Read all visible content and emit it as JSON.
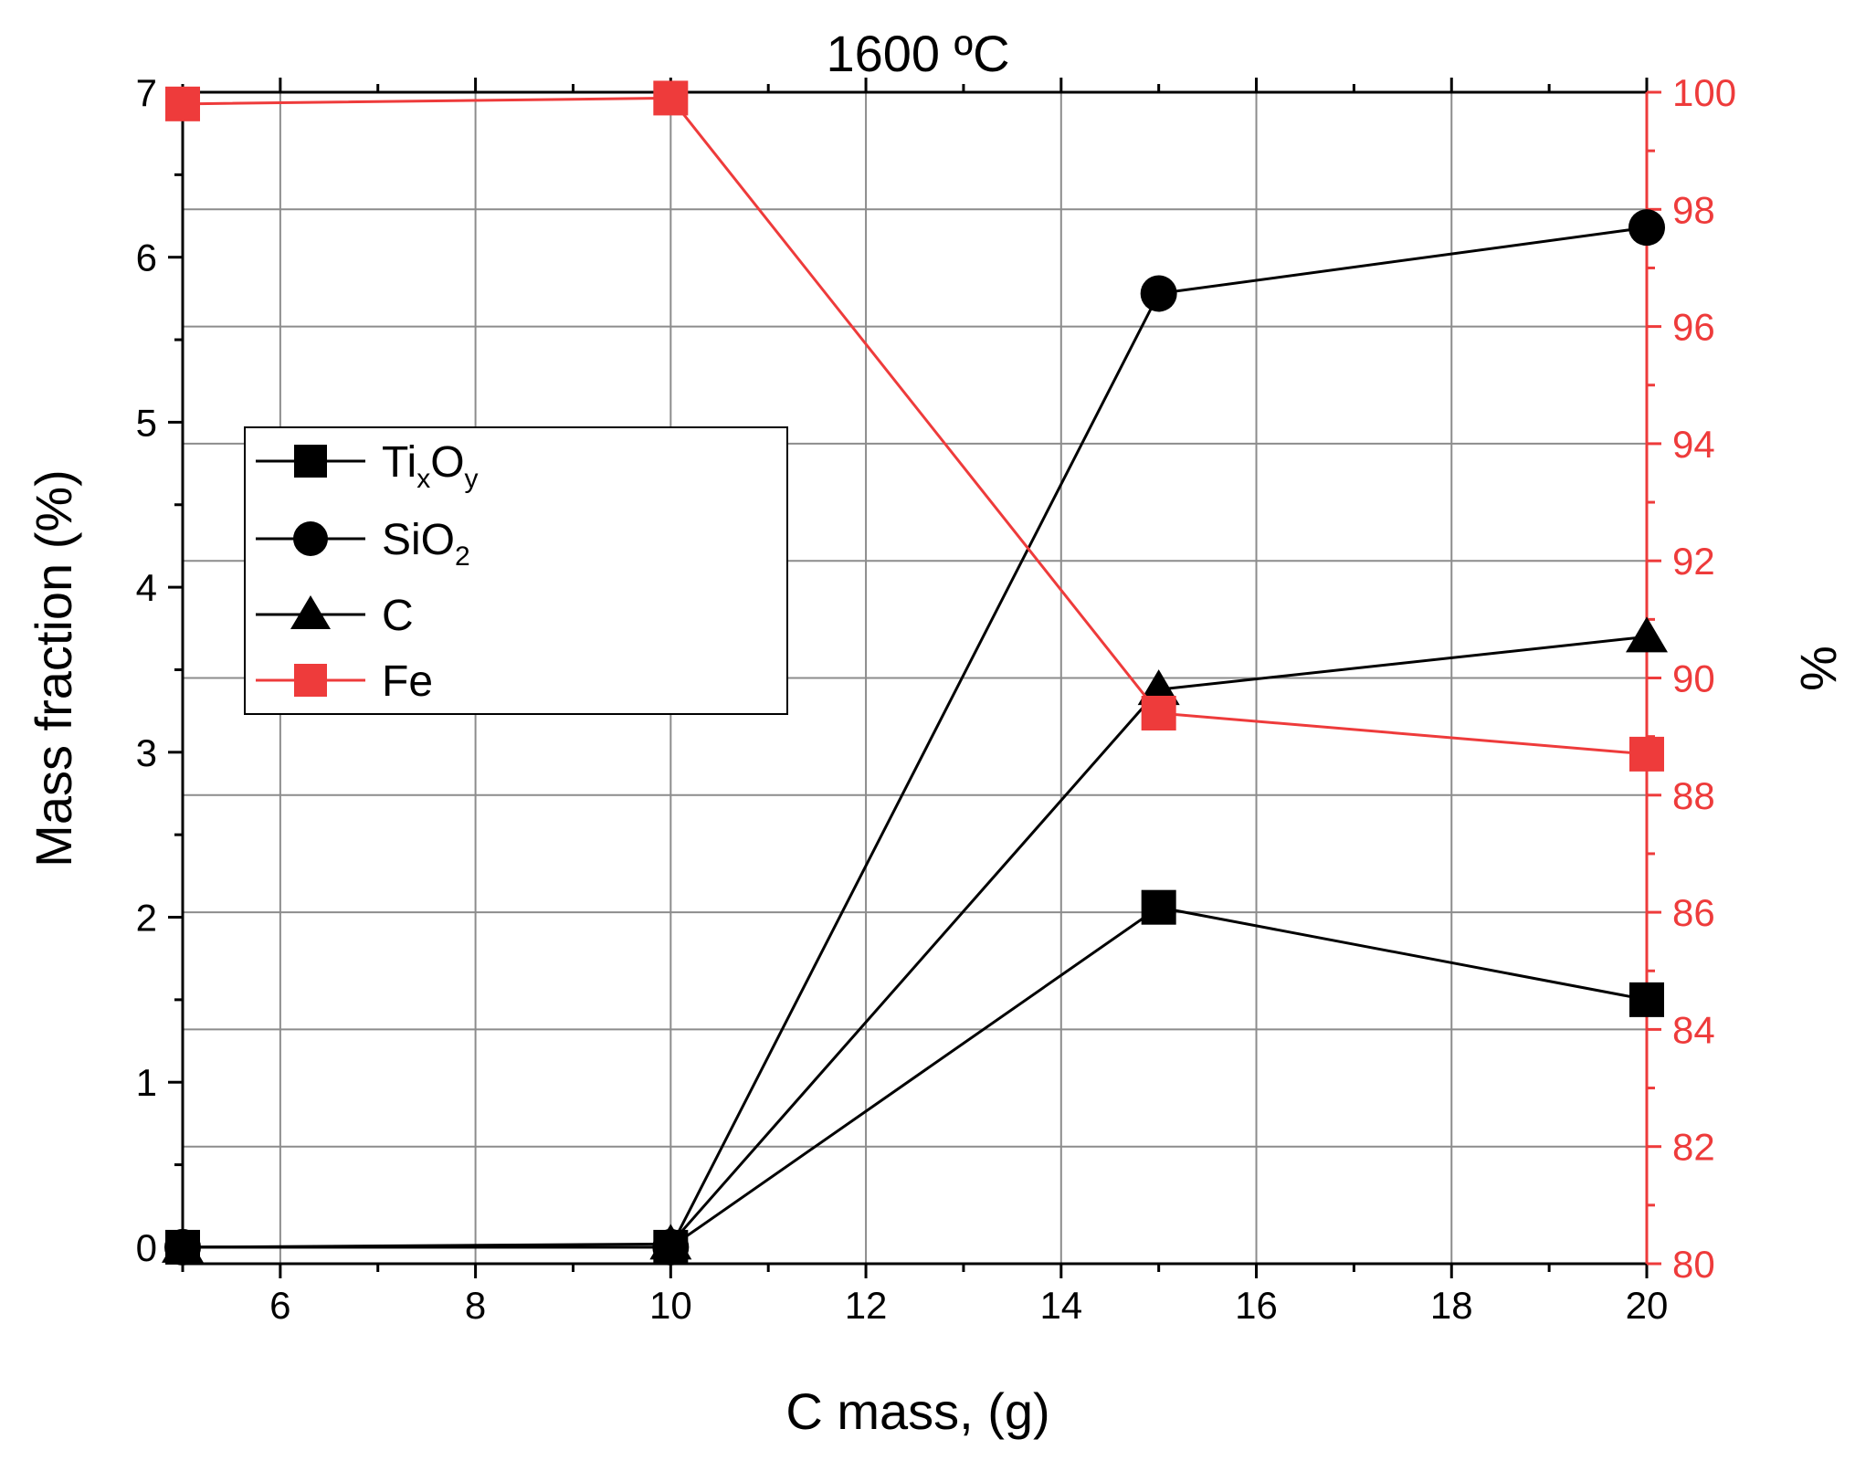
{
  "chart_data": {
    "type": "line",
    "title": "1600 ºC",
    "xlabel": "C mass, (g)",
    "ylabel": "Mass fraction (%)",
    "y2label": "%",
    "xlim": [
      5,
      20
    ],
    "ylim": [
      -0.1,
      7
    ],
    "y2lim": [
      80,
      100
    ],
    "x_ticks": [
      6,
      8,
      10,
      12,
      14,
      16,
      18,
      20
    ],
    "y_ticks": [
      0,
      1,
      2,
      3,
      4,
      5,
      6,
      7
    ],
    "y2_ticks": [
      80,
      82,
      84,
      86,
      88,
      90,
      92,
      94,
      96,
      98,
      100
    ],
    "colors": {
      "black": "#000000",
      "red": "#ee3b3b"
    },
    "series": [
      {
        "name": "TixOy",
        "axis": "left",
        "marker": "square",
        "color": "#000000",
        "x": [
          5,
          10,
          15,
          20
        ],
        "values": [
          0,
          0,
          2.06,
          1.5
        ]
      },
      {
        "name": "SiO2",
        "axis": "left",
        "marker": "circle",
        "color": "#000000",
        "x": [
          5,
          10,
          15,
          20
        ],
        "values": [
          0,
          0,
          5.78,
          6.18
        ]
      },
      {
        "name": "C",
        "axis": "left",
        "marker": "triangle",
        "color": "#000000",
        "x": [
          5,
          10,
          15,
          20
        ],
        "values": [
          0,
          0.02,
          3.38,
          3.7
        ]
      },
      {
        "name": "Fe",
        "axis": "right",
        "marker": "square",
        "color": "#ee3b3b",
        "x": [
          5,
          10,
          15,
          20
        ],
        "values": [
          99.8,
          99.9,
          89.4,
          88.7
        ]
      }
    ],
    "legend": {
      "position": "left-middle",
      "entries": [
        {
          "base": "Ti",
          "sub1": "x",
          "mid": "O",
          "sub2": "y"
        },
        {
          "base": "SiO",
          "sub1": "2",
          "mid": "",
          "sub2": ""
        },
        {
          "base": "C",
          "sub1": "",
          "mid": "",
          "sub2": ""
        },
        {
          "base": "Fe",
          "sub1": "",
          "mid": "",
          "sub2": ""
        }
      ]
    }
  }
}
